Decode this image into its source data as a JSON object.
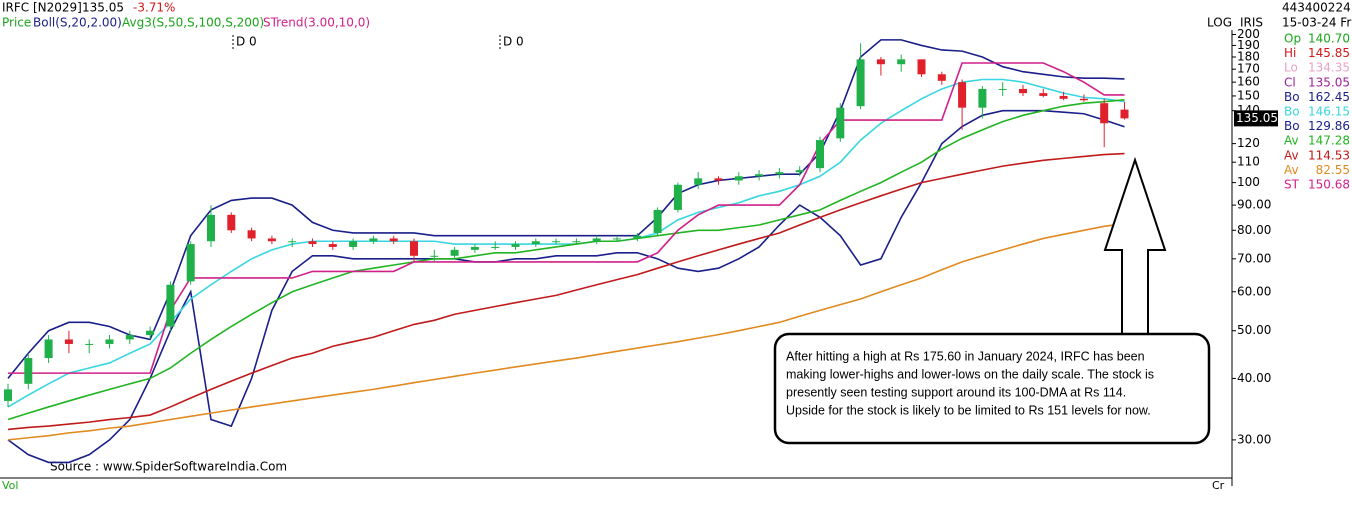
{
  "chart_data": {
    "type": "candlestick",
    "symbol": "IRFC [N2029]",
    "price": 135.05,
    "change": "-3.71%",
    "price_label": "Price",
    "boll_label": "Boll(S,20,2.00)",
    "avg_label": "Avg3(S,50,S,100,S,200)",
    "strend_label": "STrend(3.00,10,0)",
    "markers": [
      "D 0",
      "D 0"
    ],
    "log_label": "LOG",
    "scale_label": "IRIS",
    "source": "Source : www.SpiderSoftwareIndia.Com",
    "vol_label": "Vol",
    "cr_label": "Cr",
    "info": {
      "id": "443400224.0",
      "date": "15-03-24 Fri",
      "rows": [
        {
          "label": "Op",
          "value": 140.7,
          "value_label": "140.70",
          "color": "#1aa51a"
        },
        {
          "label": "Hi",
          "value": 145.85,
          "value_label": "145.85",
          "color": "#d01818"
        },
        {
          "label": "Lo",
          "value": 134.35,
          "value_label": "134.35",
          "color": "#e7a3c4"
        },
        {
          "label": "Cl",
          "value": 135.05,
          "value_label": "135.05",
          "color": "#a0209a"
        },
        {
          "label": "Bo",
          "value": 162.45,
          "value_label": "162.45",
          "color": "#1a1f8a"
        },
        {
          "label": "Bo",
          "value": 146.15,
          "value_label": "146.15",
          "color": "#38d6e0"
        },
        {
          "label": "Bo",
          "value": 129.86,
          "value_label": "129.86",
          "color": "#1a1f8a"
        },
        {
          "label": "Av",
          "value": 147.28,
          "value_label": "147.28",
          "color": "#22b422"
        },
        {
          "label": "Av",
          "value": 114.53,
          "value_label": "114.53",
          "color": "#c01a1a"
        },
        {
          "label": "Av",
          "value": 82.55,
          "value_label": "82.55",
          "color": "#e08a20"
        },
        {
          "label": "ST",
          "value": 150.68,
          "value_label": "150.68",
          "color": "#d0208a"
        }
      ]
    },
    "annotation": [
      "After hitting a high at Rs 175.60 in January 2024, IRFC has been",
      "making lower-highs and lower-lows on the daily scale. The stock is",
      "presently seen testing support around its 100-DMA at Rs 114.",
      "Upside for the stock is likely to be limited to Rs 151 levels for now."
    ],
    "log_scale": true,
    "ylim": [
      25.1,
      214
    ],
    "yticks": [
      200,
      190,
      180,
      170,
      160,
      150,
      140,
      120,
      110,
      100,
      {
        "value": 90,
        "label": "90.00"
      },
      {
        "value": 80,
        "label": "80.00"
      },
      {
        "value": 70,
        "label": "70.00"
      },
      {
        "value": 60,
        "label": "60.00"
      },
      {
        "value": 50,
        "label": "50.00"
      },
      {
        "value": 40,
        "label": "40.00"
      },
      {
        "value": 30,
        "label": "30.00"
      }
    ],
    "up_color": "#1fb04a",
    "down_color": "#e0202a",
    "open": [
      36,
      39,
      44,
      48,
      47,
      47,
      48,
      49,
      51,
      63,
      76,
      86,
      80,
      77,
      76,
      76,
      75,
      74,
      76,
      77,
      76,
      71,
      71,
      73,
      74,
      74,
      75,
      76,
      76,
      76,
      77,
      77,
      79,
      88,
      99,
      102,
      101,
      103,
      104,
      105,
      107,
      123,
      143,
      178,
      174,
      178,
      166,
      160,
      142,
      155,
      155,
      152,
      150,
      148,
      145,
      140.7
    ],
    "high": [
      39,
      45,
      49,
      50,
      48,
      49,
      50,
      51,
      63,
      76,
      90,
      87,
      81,
      78,
      77,
      77,
      76,
      77,
      78,
      78,
      77,
      73,
      74,
      75,
      76,
      76,
      77,
      77,
      77,
      78,
      78,
      79,
      89,
      100,
      105,
      103,
      105,
      106,
      107,
      108,
      124,
      145,
      192,
      180,
      182,
      178,
      168,
      162,
      157,
      160,
      158,
      155,
      153,
      151,
      148,
      145.85
    ],
    "low": [
      35,
      38,
      43,
      45,
      45,
      46,
      47,
      48,
      50,
      62,
      74,
      79,
      76,
      75,
      74,
      74,
      73,
      73,
      75,
      75,
      69,
      69,
      70,
      72,
      73,
      73,
      74,
      75,
      75,
      75,
      76,
      76,
      78,
      87,
      97,
      99,
      99,
      101,
      102,
      103,
      105,
      121,
      141,
      165,
      168,
      164,
      158,
      128,
      135,
      150,
      150,
      149,
      147,
      146,
      118,
      134.35
    ],
    "close": [
      38,
      44,
      48,
      47,
      47,
      48,
      49,
      50,
      62,
      75,
      86,
      80,
      77,
      76,
      76,
      75,
      74,
      76,
      77,
      76,
      71,
      71,
      73,
      74,
      74,
      75,
      76,
      76,
      76,
      77,
      77,
      78,
      88,
      99,
      102,
      101,
      103,
      104,
      105,
      106,
      122,
      142,
      178,
      174,
      178,
      166,
      161,
      142,
      155,
      155,
      152,
      150,
      148,
      147,
      132,
      135.05
    ],
    "lines": [
      {
        "color": "#1a1f8a",
        "values": [
          40,
          45,
          50,
          52,
          52,
          51,
          49,
          48,
          60,
          78,
          88,
          92,
          93,
          93,
          90,
          83,
          80,
          79,
          79,
          79,
          79,
          78,
          78,
          78,
          78,
          78,
          78,
          78,
          78,
          78,
          78,
          78,
          85,
          95,
          99,
          101,
          102,
          103,
          104,
          104,
          115,
          140,
          180,
          195,
          195,
          190,
          186,
          185,
          180,
          172,
          168,
          166,
          164,
          163,
          163,
          162.45
        ]
      },
      {
        "color": "#1a1f8a",
        "values": [
          30,
          28,
          27,
          27,
          28,
          30,
          33,
          40,
          50,
          60,
          33,
          32,
          40,
          55,
          66,
          71,
          71,
          70,
          70,
          70,
          70,
          70,
          70,
          69,
          69,
          70,
          70,
          71,
          71,
          71,
          72,
          72,
          70,
          67,
          66,
          67,
          70,
          74,
          82,
          90,
          85,
          78,
          68,
          70,
          85,
          100,
          120,
          130,
          137,
          140,
          140,
          140,
          139,
          138,
          134,
          129.86
        ]
      },
      {
        "color": "#38d6e0",
        "values": [
          35,
          37,
          39,
          41,
          42,
          43,
          45,
          47,
          52,
          58,
          62,
          66,
          70,
          73,
          75,
          76,
          76,
          76,
          76,
          76,
          76,
          76,
          75,
          75,
          75,
          75,
          75,
          75,
          75,
          76,
          76,
          77,
          79,
          84,
          87,
          89,
          91,
          94,
          96,
          99,
          103,
          110,
          122,
          132,
          140,
          148,
          155,
          160,
          162,
          162,
          160,
          156,
          152,
          149,
          148,
          146.15
        ]
      },
      {
        "color": "#22b422",
        "values": [
          33,
          34,
          35,
          36,
          37,
          38,
          39,
          40,
          42,
          45,
          48,
          51,
          54,
          57,
          60,
          62,
          64,
          66,
          67,
          68,
          69,
          70,
          70,
          71,
          72,
          72,
          73,
          74,
          75,
          76,
          76,
          77,
          78,
          79,
          80,
          80,
          81,
          82,
          84,
          86,
          88,
          92,
          96,
          100,
          105,
          110,
          117,
          123,
          128,
          133,
          137,
          140,
          143,
          145,
          146,
          147.28
        ]
      },
      {
        "color": "#c01a1a",
        "values": [
          31.5,
          31.8,
          32,
          32.3,
          32.6,
          33,
          33.3,
          33.7,
          35,
          36.5,
          38,
          39.5,
          41,
          42.5,
          44,
          45,
          46.5,
          47.5,
          48.5,
          50,
          51.5,
          52.5,
          54,
          55,
          56,
          57,
          58,
          59,
          60.5,
          62,
          63.5,
          65,
          67,
          69,
          71,
          73,
          75,
          77,
          79,
          82,
          85,
          88,
          91,
          94,
          97,
          100,
          102,
          104,
          106,
          108,
          109.5,
          111,
          112,
          113,
          114,
          114.53
        ]
      },
      {
        "color": "#e08a20",
        "values": [
          30,
          30.3,
          30.6,
          31,
          31.3,
          31.7,
          32,
          32.5,
          33,
          33.5,
          34,
          34.5,
          35,
          35.5,
          36,
          36.5,
          37,
          37.5,
          38,
          38.6,
          39.2,
          39.8,
          40.4,
          41,
          41.6,
          42.2,
          42.8,
          43.4,
          44,
          44.7,
          45.4,
          46.1,
          46.8,
          47.5,
          48.3,
          49.1,
          50,
          51,
          52,
          53.5,
          55,
          56.5,
          58,
          60,
          62,
          64,
          66.5,
          69,
          71,
          73,
          75,
          77,
          78.5,
          80,
          81.5,
          82.55
        ]
      },
      {
        "color": "#d0208a",
        "values": [
          41,
          41,
          41,
          41,
          41,
          41,
          41,
          41,
          55,
          64,
          64,
          64,
          64,
          64,
          64,
          66,
          66,
          66,
          66,
          66,
          69,
          69,
          69,
          69,
          69,
          69,
          69,
          69,
          69,
          69,
          69,
          69,
          72,
          80,
          86,
          90,
          90,
          90,
          90,
          99,
          120,
          134,
          134,
          134,
          134,
          134,
          134,
          175,
          175,
          175,
          175,
          175,
          168,
          160,
          150.68,
          150.68
        ]
      }
    ]
  }
}
